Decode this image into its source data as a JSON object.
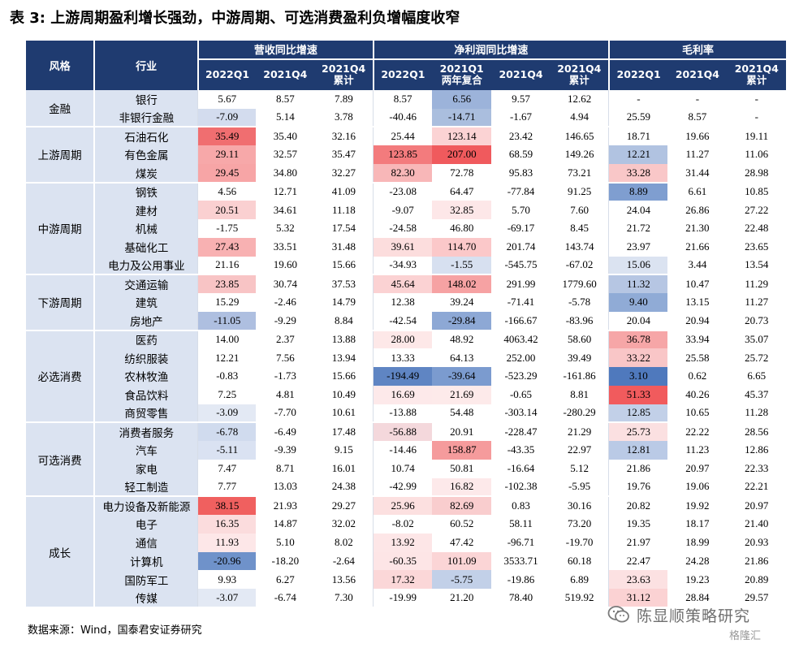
{
  "title": "表 3:  上游周期盈利增长强劲，中游周期、可选消费盈利负增幅度收窄",
  "header": {
    "style": "风格",
    "industry": "行业",
    "groups": [
      "营收同比增速",
      "净利润同比增速",
      "毛利率"
    ],
    "revenue_cols": [
      "2022Q1",
      "2021Q4",
      "2021Q4\n累计"
    ],
    "profit_cols": [
      "2022Q1",
      "2021Q1\n两年复合",
      "2021Q4",
      "2021Q4\n累计"
    ],
    "margin_cols": [
      "2022Q1",
      "2021Q4",
      "2021Q4\n累计"
    ]
  },
  "style_groups": [
    {
      "name": "金融",
      "rows": 2
    },
    {
      "name": "上游周期",
      "rows": 3
    },
    {
      "name": "中游周期",
      "rows": 5
    },
    {
      "name": "下游周期",
      "rows": 3
    },
    {
      "name": "必选消费",
      "rows": 5
    },
    {
      "name": "可选消费",
      "rows": 4
    },
    {
      "name": "成长",
      "rows": 6
    }
  ],
  "rows": [
    {
      "industry": "银行",
      "values": [
        "5.67",
        "8.57",
        "7.89",
        "8.57",
        "6.56",
        "9.57",
        "12.62",
        "-",
        "-",
        "-"
      ],
      "bg": [
        "",
        "",
        "",
        "",
        "#9cb3da",
        "",
        "",
        "",
        "",
        ""
      ]
    },
    {
      "industry": "非银行金融",
      "values": [
        "-7.09",
        "5.14",
        "3.78",
        "-40.46",
        "-14.71",
        "-1.67",
        "4.94",
        "25.59",
        "8.57",
        "-"
      ],
      "bg": [
        "#d3dcee",
        "",
        "",
        "",
        "#aabede",
        "",
        "",
        "",
        "",
        ""
      ]
    },
    {
      "industry": "石油石化",
      "values": [
        "35.49",
        "35.40",
        "32.16",
        "25.44",
        "123.14",
        "23.42",
        "146.65",
        "18.71",
        "19.66",
        "19.11"
      ],
      "bg": [
        "#f06e70",
        "",
        "",
        "",
        "#fbd3d4",
        "",
        "",
        "",
        "",
        ""
      ]
    },
    {
      "industry": "有色金属",
      "values": [
        "29.11",
        "32.57",
        "35.47",
        "123.85",
        "207.00",
        "68.59",
        "149.26",
        "12.21",
        "11.27",
        "11.06"
      ],
      "bg": [
        "#f7a8a9",
        "",
        "",
        "#f37b7d",
        "#f05a5d",
        "",
        "",
        "#b1c3e1",
        "",
        ""
      ]
    },
    {
      "industry": "煤炭",
      "values": [
        "29.45",
        "34.80",
        "32.27",
        "82.30",
        "72.78",
        "95.83",
        "73.21",
        "33.28",
        "31.44",
        "28.98"
      ],
      "bg": [
        "#f7a5a6",
        "",
        "",
        "#f8b7b8",
        "",
        "",
        "",
        "#f9c7c8",
        "",
        ""
      ]
    },
    {
      "industry": "钢铁",
      "values": [
        "4.56",
        "12.71",
        "41.09",
        "-23.08",
        "64.47",
        "-77.84",
        "91.25",
        "8.89",
        "6.61",
        "10.85"
      ],
      "bg": [
        "",
        "",
        "",
        "",
        "",
        "",
        "",
        "#7f9ed0",
        "",
        ""
      ]
    },
    {
      "industry": "建材",
      "values": [
        "20.51",
        "34.61",
        "11.18",
        "-9.07",
        "32.85",
        "5.70",
        "7.60",
        "24.04",
        "26.86",
        "27.22"
      ],
      "bg": [
        "#fad0d1",
        "",
        "",
        "",
        "#fde7e8",
        "",
        "",
        "",
        "",
        ""
      ]
    },
    {
      "industry": "机械",
      "values": [
        "-1.75",
        "5.32",
        "17.54",
        "-24.58",
        "46.80",
        "-69.17",
        "8.45",
        "21.72",
        "21.30",
        "22.48"
      ],
      "bg": [
        "",
        "",
        "",
        "",
        "",
        "",
        "",
        "",
        "",
        ""
      ]
    },
    {
      "industry": "基础化工",
      "values": [
        "27.43",
        "33.51",
        "31.48",
        "39.61",
        "114.70",
        "201.74",
        "143.74",
        "23.97",
        "21.66",
        "23.65"
      ],
      "bg": [
        "#f8b1b2",
        "",
        "",
        "#fcdddd",
        "#fbc8c9",
        "",
        "",
        "",
        "",
        ""
      ]
    },
    {
      "industry": "电力及公用事业",
      "values": [
        "21.16",
        "19.60",
        "15.66",
        "-34.93",
        "-1.55",
        "-545.75",
        "-67.02",
        "15.06",
        "3.44",
        "13.54"
      ],
      "bg": [
        "",
        "",
        "",
        "",
        "#d7e0f0",
        "",
        "",
        "#dbe3f1",
        "",
        ""
      ]
    },
    {
      "industry": "交通运输",
      "values": [
        "23.85",
        "30.74",
        "37.53",
        "45.64",
        "148.02",
        "291.99",
        "1779.60",
        "11.32",
        "10.47",
        "11.29"
      ],
      "bg": [
        "#f8c4c5",
        "",
        "",
        "#fbd2d3",
        "#f6a2a3",
        "",
        "",
        "#b6c6e3",
        "",
        ""
      ]
    },
    {
      "industry": "建筑",
      "values": [
        "15.29",
        "-2.46",
        "14.79",
        "12.38",
        "39.24",
        "-71.41",
        "-5.78",
        "9.40",
        "13.15",
        "11.27"
      ],
      "bg": [
        "",
        "",
        "",
        "",
        "",
        "",
        "",
        "#90abd6",
        "",
        ""
      ]
    },
    {
      "industry": "房地产",
      "values": [
        "-11.05",
        "-9.29",
        "8.84",
        "-42.54",
        "-29.84",
        "-166.67",
        "-83.96",
        "20.04",
        "20.94",
        "20.73"
      ],
      "bg": [
        "#aebfe0",
        "",
        "",
        "",
        "#8da8d5",
        "",
        "",
        "",
        "",
        ""
      ]
    },
    {
      "industry": "医药",
      "values": [
        "14.00",
        "2.37",
        "13.88",
        "28.00",
        "48.92",
        "4063.42",
        "58.60",
        "36.78",
        "33.94",
        "35.07"
      ],
      "bg": [
        "",
        "",
        "",
        "#fde8e8",
        "",
        "",
        "",
        "#f6a6a7",
        "",
        ""
      ]
    },
    {
      "industry": "纺织服装",
      "values": [
        "12.21",
        "7.56",
        "13.94",
        "13.33",
        "64.13",
        "252.00",
        "39.49",
        "33.22",
        "25.58",
        "25.72"
      ],
      "bg": [
        "",
        "",
        "",
        "",
        "",
        "",
        "",
        "#f9c6c7",
        "",
        ""
      ]
    },
    {
      "industry": "农林牧渔",
      "values": [
        "-0.83",
        "-1.73",
        "15.66",
        "-194.49",
        "-39.64",
        "-523.29",
        "-161.86",
        "3.10",
        "0.62",
        "6.65"
      ],
      "bg": [
        "",
        "",
        "",
        "#5f85c3",
        "#7b9bcf",
        "",
        "",
        "#4f79bd",
        "",
        ""
      ]
    },
    {
      "industry": "食品饮料",
      "values": [
        "7.25",
        "4.81",
        "10.49",
        "16.69",
        "21.69",
        "-0.65",
        "8.81",
        "51.33",
        "40.26",
        "45.37"
      ],
      "bg": [
        "",
        "",
        "",
        "#fde9ea",
        "#fdeaea",
        "",
        "",
        "#f15b5d",
        "",
        ""
      ]
    },
    {
      "industry": "商贸零售",
      "values": [
        "-3.09",
        "-7.70",
        "10.61",
        "-13.88",
        "54.48",
        "-303.14",
        "-280.29",
        "12.85",
        "10.65",
        "11.28"
      ],
      "bg": [
        "#e3e9f4",
        "",
        "",
        "",
        "",
        "",
        "",
        "#c2d0e8",
        "",
        ""
      ]
    },
    {
      "industry": "消费者服务",
      "values": [
        "-6.78",
        "-6.49",
        "17.48",
        "-56.88",
        "20.91",
        "-228.47",
        "21.29",
        "25.73",
        "22.22",
        "28.56"
      ],
      "bg": [
        "#d0dbee",
        "",
        "",
        "#f4d8dc",
        "",
        "",
        "",
        "#fbe0e1",
        "",
        ""
      ]
    },
    {
      "industry": "汽车",
      "values": [
        "-5.11",
        "-9.39",
        "9.15",
        "-14.46",
        "158.87",
        "-43.35",
        "22.97",
        "12.81",
        "11.23",
        "12.86"
      ],
      "bg": [
        "#dae2f2",
        "",
        "",
        "",
        "#f59b9c",
        "",
        "",
        "#bacae6",
        "",
        ""
      ]
    },
    {
      "industry": "家电",
      "values": [
        "7.47",
        "8.71",
        "16.01",
        "10.74",
        "50.81",
        "-16.64",
        "5.12",
        "21.86",
        "20.97",
        "22.33"
      ],
      "bg": [
        "",
        "",
        "",
        "",
        "",
        "",
        "",
        "",
        "",
        ""
      ]
    },
    {
      "industry": "轻工制造",
      "values": [
        "7.77",
        "13.03",
        "24.38",
        "-42.99",
        "16.82",
        "-102.38",
        "-5.95",
        "19.76",
        "19.06",
        "22.21"
      ],
      "bg": [
        "",
        "",
        "",
        "",
        "#fde9ea",
        "",
        "",
        "",
        "",
        ""
      ]
    },
    {
      "industry": "电力设备及新能源",
      "values": [
        "38.15",
        "21.93",
        "29.27",
        "25.96",
        "82.69",
        "0.83",
        "30.16",
        "20.82",
        "19.92",
        "20.97"
      ],
      "bg": [
        "#f0605f",
        "",
        "",
        "#fce0e0",
        "#f9cdce",
        "",
        "",
        "",
        "",
        ""
      ]
    },
    {
      "industry": "电子",
      "values": [
        "16.35",
        "14.87",
        "32.02",
        "-8.02",
        "60.52",
        "58.11",
        "73.20",
        "19.35",
        "18.17",
        "21.40"
      ],
      "bg": [
        "#fbdcdd",
        "",
        "",
        "",
        "",
        "",
        "",
        "",
        "",
        ""
      ]
    },
    {
      "industry": "通信",
      "values": [
        "11.93",
        "5.10",
        "8.02",
        "13.92",
        "47.42",
        "-96.71",
        "-19.70",
        "21.97",
        "18.99",
        "20.93"
      ],
      "bg": [
        "#fde7e8",
        "",
        "",
        "#fde6e7",
        "",
        "",
        "",
        "",
        "",
        ""
      ]
    },
    {
      "industry": "计算机",
      "values": [
        "-20.96",
        "-18.20",
        "-2.64",
        "-60.35",
        "101.09",
        "3533.71",
        "60.18",
        "22.47",
        "24.28",
        "21.86"
      ],
      "bg": [
        "#6f92ca",
        "",
        "",
        "#fde5e6",
        "#fbd5d6",
        "",
        "",
        "",
        "",
        ""
      ]
    },
    {
      "industry": "国防军工",
      "values": [
        "9.93",
        "6.27",
        "13.56",
        "17.32",
        "-5.75",
        "-19.86",
        "6.89",
        "23.63",
        "19.23",
        "20.89"
      ],
      "bg": [
        "",
        "",
        "",
        "#fbd7d8",
        "#c2d0e8",
        "",
        "",
        "#fce1e2",
        "",
        ""
      ]
    },
    {
      "industry": "传媒",
      "values": [
        "-3.07",
        "-6.74",
        "7.30",
        "-19.99",
        "21.20",
        "78.40",
        "519.92",
        "31.12",
        "28.84",
        "29.57"
      ],
      "bg": [
        "#e3e9f4",
        "",
        "",
        "",
        "",
        "",
        "",
        "#fbd2d3",
        "",
        ""
      ]
    }
  ],
  "source": "数据来源：Wind，国泰君安证券研究",
  "watermark": {
    "text": "陈显顺策略研究",
    "sub": "格隆汇"
  }
}
